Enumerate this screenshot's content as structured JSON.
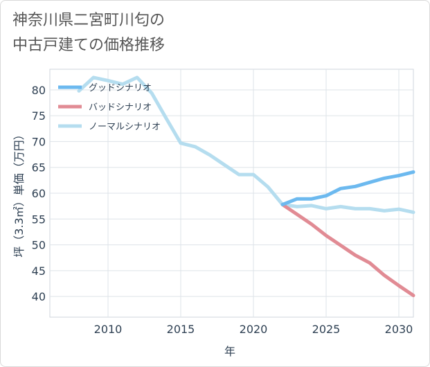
{
  "chart_data": {
    "type": "line",
    "title": [
      "神奈川県二宮町川匂の",
      "中古戸建ての価格推移"
    ],
    "xlabel": "年",
    "ylabel": "坪（3.3㎡）単価（万円）",
    "xlim": [
      2006,
      2031
    ],
    "ylim": [
      36,
      84
    ],
    "xticks": [
      2010,
      2015,
      2020,
      2025,
      2030
    ],
    "yticks": [
      40,
      45,
      50,
      55,
      60,
      65,
      70,
      75,
      80
    ],
    "grid": true,
    "legend_position": "top-left",
    "series": [
      {
        "name": "グッドシナリオ",
        "color": "#6cb9ef",
        "x": [
          2022,
          2023,
          2024,
          2025,
          2026,
          2027,
          2028,
          2029,
          2030,
          2031
        ],
        "y": [
          57.8,
          58.9,
          58.9,
          59.5,
          60.9,
          61.3,
          62.1,
          62.9,
          63.4,
          64.1
        ]
      },
      {
        "name": "バッドシナリオ",
        "color": "#e18b94",
        "x": [
          2022,
          2023,
          2024,
          2025,
          2026,
          2027,
          2028,
          2029,
          2030,
          2031
        ],
        "y": [
          57.8,
          55.9,
          54.0,
          51.8,
          49.9,
          48.0,
          46.5,
          44.1,
          42.1,
          40.2
        ]
      },
      {
        "name": "ノーマルシナリオ",
        "color": "#b5ddef",
        "x": [
          2008,
          2009,
          2010,
          2011,
          2012,
          2013,
          2014,
          2015,
          2016,
          2017,
          2018,
          2019,
          2020,
          2021,
          2022,
          2023,
          2024,
          2025,
          2026,
          2027,
          2028,
          2029,
          2030,
          2031
        ],
        "y": [
          79.8,
          82.4,
          81.8,
          81.1,
          82.4,
          79.4,
          74.5,
          69.7,
          69.0,
          67.4,
          65.5,
          63.6,
          63.6,
          61.2,
          57.8,
          57.4,
          57.6,
          57.0,
          57.4,
          57.0,
          57.0,
          56.6,
          56.9,
          56.3
        ]
      }
    ]
  }
}
